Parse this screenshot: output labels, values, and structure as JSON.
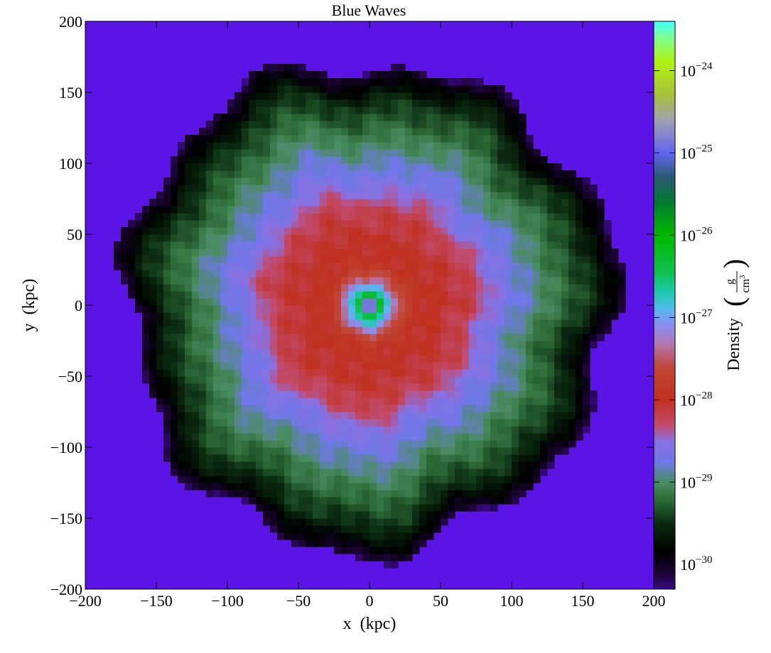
{
  "chart_data": {
    "type": "heatmap",
    "title": "Blue Waves",
    "xlabel": "x  (kpc)",
    "ylabel": "y  (kpc)",
    "xlim": [
      -200,
      200
    ],
    "ylim": [
      -200,
      200
    ],
    "xticks": [
      -200,
      -150,
      -100,
      -50,
      0,
      50,
      100,
      150,
      200
    ],
    "yticks": [
      -200,
      -150,
      -100,
      -50,
      0,
      50,
      100,
      150,
      200
    ],
    "xtick_labels": [
      "−200",
      "−150",
      "−100",
      "−50",
      "0",
      "50",
      "100",
      "150",
      "200"
    ],
    "ytick_labels": [
      "−200",
      "−150",
      "−100",
      "−50",
      "0",
      "50",
      "100",
      "150",
      "200"
    ],
    "grid": false,
    "colorbar": {
      "label_main": "Density",
      "label_unit_num": "g",
      "label_unit_den": "cm",
      "label_unit_den_exp": "3",
      "scale": "log",
      "range_log10": [
        -30.3,
        -23.4
      ],
      "ticks": [
        {
          "log10": -24,
          "base": "10",
          "exp": "−24"
        },
        {
          "log10": -25,
          "base": "10",
          "exp": "−25"
        },
        {
          "log10": -26,
          "base": "10",
          "exp": "−26"
        },
        {
          "log10": -27,
          "base": "10",
          "exp": "−27"
        },
        {
          "log10": -28,
          "base": "10",
          "exp": "−28"
        },
        {
          "log10": -29,
          "base": "10",
          "exp": "−29"
        },
        {
          "log10": -30,
          "base": "10",
          "exp": "−30"
        }
      ],
      "colormap_stops": [
        {
          "log10": -30.3,
          "color": "#3a0a8a"
        },
        {
          "log10": -30.15,
          "color": "#220540"
        },
        {
          "log10": -29.85,
          "color": "#000000"
        },
        {
          "log10": -29.5,
          "color": "#0b2a10"
        },
        {
          "log10": -29.2,
          "color": "#2f6e3a"
        },
        {
          "log10": -29.0,
          "color": "#4a8c62"
        },
        {
          "log10": -28.75,
          "color": "#6f78e8"
        },
        {
          "log10": -28.5,
          "color": "#8a70e0"
        },
        {
          "log10": -28.3,
          "color": "#c24a6a"
        },
        {
          "log10": -28.0,
          "color": "#c03020"
        },
        {
          "log10": -27.6,
          "color": "#c04838"
        },
        {
          "log10": -27.3,
          "color": "#b07ab8"
        },
        {
          "log10": -27.1,
          "color": "#8c8cf0"
        },
        {
          "log10": -26.9,
          "color": "#58b8f0"
        },
        {
          "log10": -26.7,
          "color": "#20c8b0"
        },
        {
          "log10": -26.45,
          "color": "#10c050"
        },
        {
          "log10": -26.0,
          "color": "#00b800"
        },
        {
          "log10": -25.6,
          "color": "#007a30"
        },
        {
          "log10": -25.3,
          "color": "#2a5a70"
        },
        {
          "log10": -25.0,
          "color": "#6464f0"
        },
        {
          "log10": -24.6,
          "color": "#a0a0b0"
        },
        {
          "log10": -24.3,
          "color": "#a8c040"
        },
        {
          "log10": -23.9,
          "color": "#b0f010"
        },
        {
          "log10": -23.6,
          "color": "#80ff90"
        },
        {
          "log10": -23.4,
          "color": "#40ffff"
        }
      ]
    },
    "background_log10": -30.3,
    "radial_profile": [
      {
        "r": 0,
        "log10": -23.8
      },
      {
        "r": 3,
        "log10": -24.6
      },
      {
        "r": 6,
        "log10": -26.1
      },
      {
        "r": 10,
        "log10": -26.6
      },
      {
        "r": 14,
        "log10": -26.95
      },
      {
        "r": 20,
        "log10": -27.5
      },
      {
        "r": 30,
        "log10": -27.95
      },
      {
        "r": 50,
        "log10": -28.05
      },
      {
        "r": 70,
        "log10": -28.2
      },
      {
        "r": 82,
        "log10": -28.5
      },
      {
        "r": 95,
        "log10": -28.7
      },
      {
        "r": 110,
        "log10": -28.9
      },
      {
        "r": 130,
        "log10": -29.2
      },
      {
        "r": 150,
        "log10": -29.5
      },
      {
        "r": 160,
        "log10": -29.8
      },
      {
        "r": 168,
        "log10": -30.0
      },
      {
        "r": 174,
        "log10": -30.3
      }
    ]
  }
}
